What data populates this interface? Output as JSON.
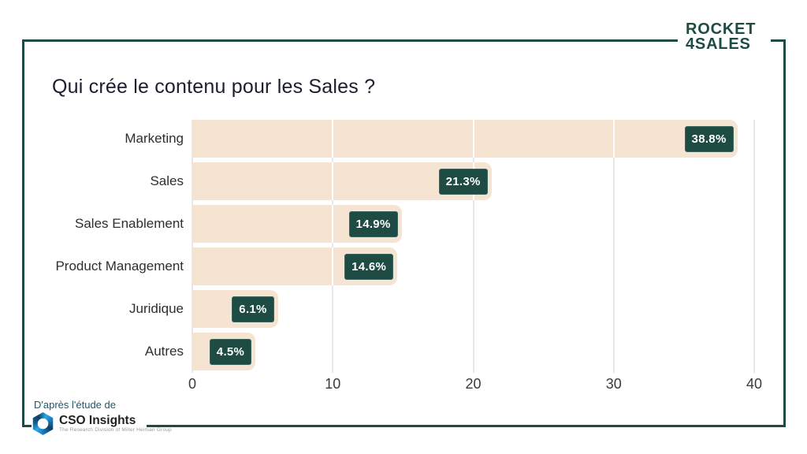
{
  "brand": {
    "logo_line1": "ROCKET",
    "logo_line2": "4SALES"
  },
  "source": {
    "prefix": "D'après l'étude de",
    "name": "CSO Insights",
    "subtitle": "The Research Division of Miller Heiman Group"
  },
  "colors": {
    "accent_green": "#1e4b44",
    "bar_beige": "#f6e4d3",
    "gridline_gray": "#e8e8e8",
    "source_teal": "#1d586b",
    "cso_blue": "#1b75bb"
  },
  "chart_data": {
    "type": "bar",
    "orientation": "horizontal",
    "title": "Qui crée le contenu pour les Sales ?",
    "categories": [
      "Marketing",
      "Sales",
      "Sales Enablement",
      "Product Management",
      "Juridique",
      "Autres"
    ],
    "values": [
      38.8,
      21.3,
      14.9,
      14.6,
      6.1,
      4.5
    ],
    "value_labels": [
      "38.8%",
      "21.3%",
      "14.9%",
      "14.6%",
      "6.1%",
      "4.5%"
    ],
    "xlabel": "",
    "ylabel": "",
    "xlim": [
      0,
      40
    ],
    "x_ticks": [
      0,
      10,
      20,
      30,
      40
    ],
    "grid": true,
    "legend": false
  }
}
